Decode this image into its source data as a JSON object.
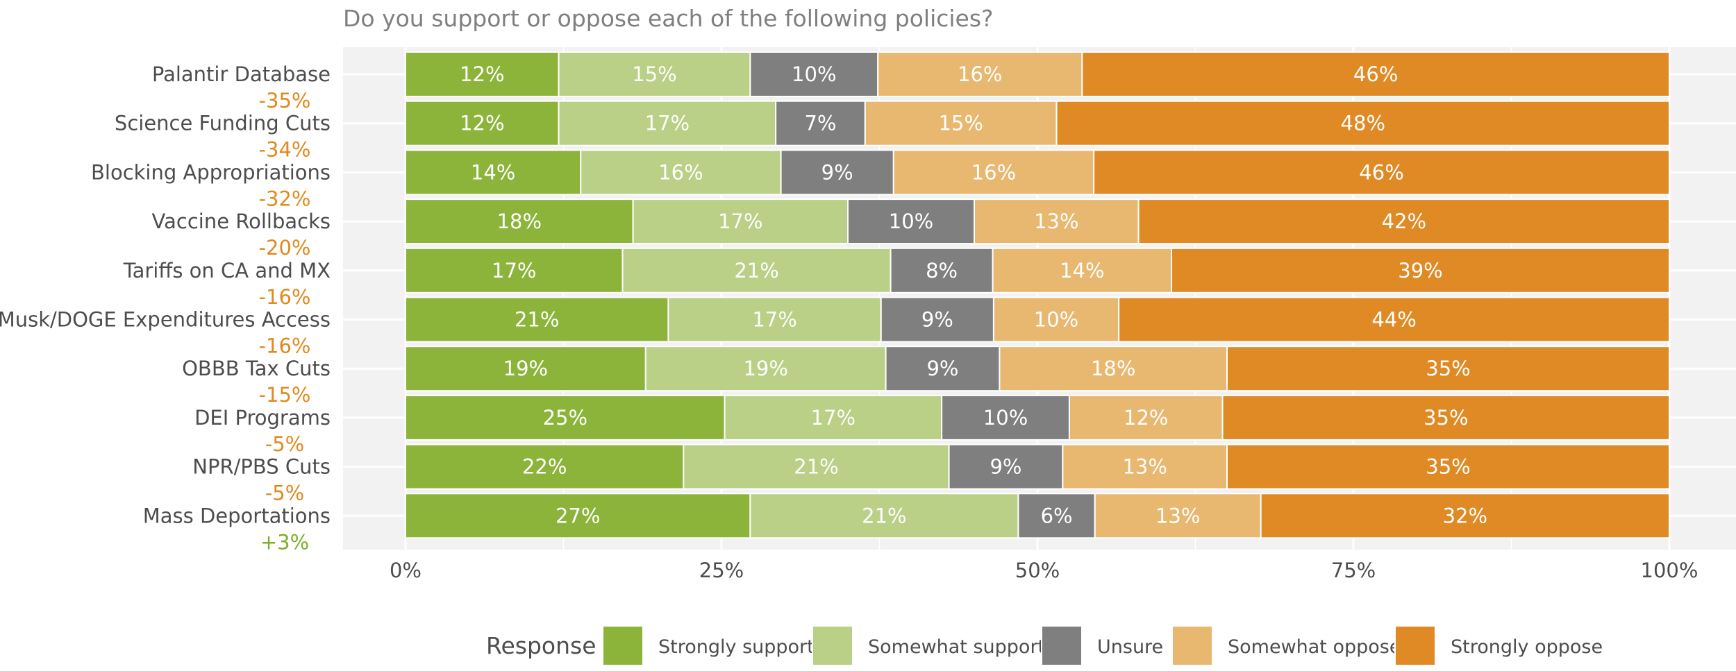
{
  "chart_data": {
    "type": "bar",
    "orientation": "horizontal",
    "stacked": true,
    "title": "Do you support or oppose each of the following policies?",
    "xlabel": "",
    "ylabel": "",
    "xlim": [
      0,
      100
    ],
    "x_ticks": [
      0,
      25,
      50,
      75,
      100
    ],
    "x_tick_labels": [
      "0%",
      "25%",
      "50%",
      "75%",
      "100%"
    ],
    "grid": true,
    "legend": {
      "title": "Response",
      "placement": "bottom"
    },
    "categories": [
      "Palantir Database",
      "Science Funding Cuts",
      "Blocking Appropriations",
      "Vaccine Rollbacks",
      "Tariffs on CA and MX",
      "Musk/DOGE Expenditures Access",
      "OBBB Tax Cuts",
      "DEI Programs",
      "NPR/PBS Cuts",
      "Mass Deportations"
    ],
    "net_labels": [
      "-35%",
      "-34%",
      "-32%",
      "-20%",
      "-16%",
      "-16%",
      "-15%",
      "-5%",
      "-5%",
      "+3%"
    ],
    "net_colors": [
      "#E08A1E",
      "#E08A1E",
      "#E08A1E",
      "#E08A1E",
      "#E08A1E",
      "#E08A1E",
      "#E08A1E",
      "#E08A1E",
      "#E08A1E",
      "#7FAE2A"
    ],
    "series": [
      {
        "name": "Strongly support",
        "color": "#8DB43A",
        "values": [
          12,
          12,
          14,
          18,
          17,
          21,
          19,
          25,
          22,
          27
        ]
      },
      {
        "name": "Somewhat support",
        "color": "#B9D086",
        "values": [
          15,
          17,
          16,
          17,
          21,
          17,
          19,
          17,
          21,
          21
        ]
      },
      {
        "name": "Unsure",
        "color": "#7F7F7F",
        "values": [
          10,
          7,
          9,
          10,
          8,
          9,
          9,
          10,
          9,
          6
        ]
      },
      {
        "name": "Somewhat oppose",
        "color": "#E8B870",
        "values": [
          16,
          15,
          16,
          13,
          14,
          10,
          18,
          12,
          13,
          13
        ]
      },
      {
        "name": "Strongly oppose",
        "color": "#E08A25",
        "values": [
          46,
          48,
          46,
          42,
          39,
          44,
          35,
          35,
          35,
          32
        ]
      }
    ],
    "value_label_suffix": "%"
  },
  "colors": {
    "panel_background": "#F2F2F2",
    "gridline": "#FFFFFF",
    "category_text": "#4D4D4D",
    "tick_text": "#4D4D4D",
    "title_text": "#7F7F7F",
    "value_label_text": "#FFFFFF"
  }
}
